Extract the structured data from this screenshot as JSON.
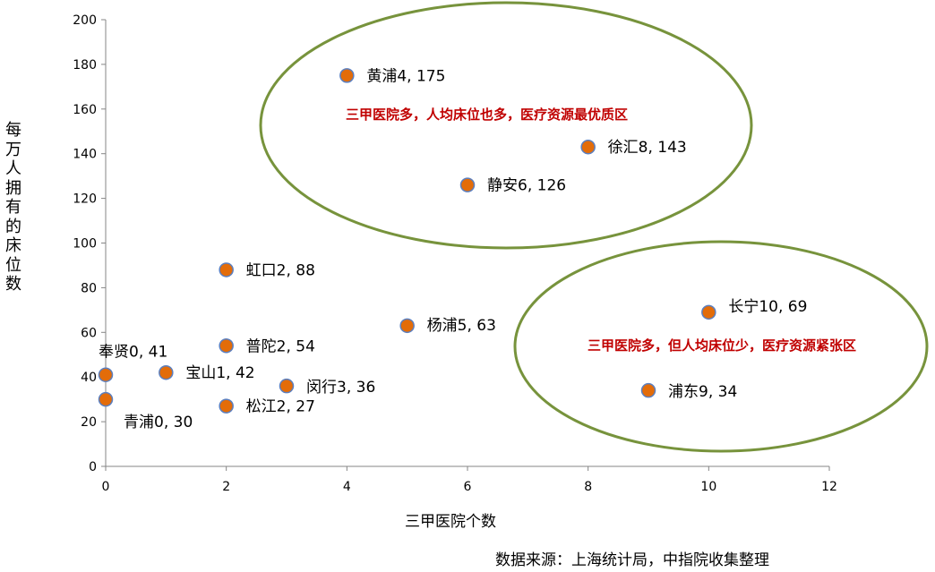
{
  "chart_data": {
    "type": "scatter",
    "xlabel": "三甲医院个数",
    "ylabel": "每万人拥有的床位数",
    "xlim": [
      0,
      12
    ],
    "ylim": [
      0,
      200
    ],
    "xticks": [
      0,
      2,
      4,
      6,
      8,
      10,
      12
    ],
    "yticks": [
      0,
      20,
      40,
      60,
      80,
      100,
      120,
      140,
      160,
      180,
      200
    ],
    "grid": false,
    "marker_color": "#e36c09",
    "marker_edge": "#5b7fbf",
    "points": [
      {
        "label": "黄浦4, 175",
        "x": 4,
        "y": 175
      },
      {
        "label": "徐汇8, 143",
        "x": 8,
        "y": 143
      },
      {
        "label": "静安6, 126",
        "x": 6,
        "y": 126
      },
      {
        "label": "虹口2, 88",
        "x": 2,
        "y": 88
      },
      {
        "label": "长宁10, 69",
        "x": 10,
        "y": 69
      },
      {
        "label": "杨浦5, 63",
        "x": 5,
        "y": 63
      },
      {
        "label": "普陀2, 54",
        "x": 2,
        "y": 54
      },
      {
        "label": "奉贤0, 41",
        "x": 0,
        "y": 41
      },
      {
        "label": "宝山1, 42",
        "x": 1,
        "y": 42
      },
      {
        "label": "闵行3, 36",
        "x": 3,
        "y": 36
      },
      {
        "label": "浦东9, 34",
        "x": 9,
        "y": 34
      },
      {
        "label": "青浦0, 30",
        "x": 0,
        "y": 30
      },
      {
        "label": "松江2, 27",
        "x": 2,
        "y": 27
      }
    ],
    "annotations": [
      {
        "text": "三甲医院多，人均床位也多，医疗资源最优质区",
        "color": "#c00000"
      },
      {
        "text": "三甲医院多，但人均床位少，医疗资源紧张区",
        "color": "#c00000"
      }
    ],
    "ellipse_color": "#77933c"
  },
  "source": "数据来源：上海统计局，中指院收集整理"
}
